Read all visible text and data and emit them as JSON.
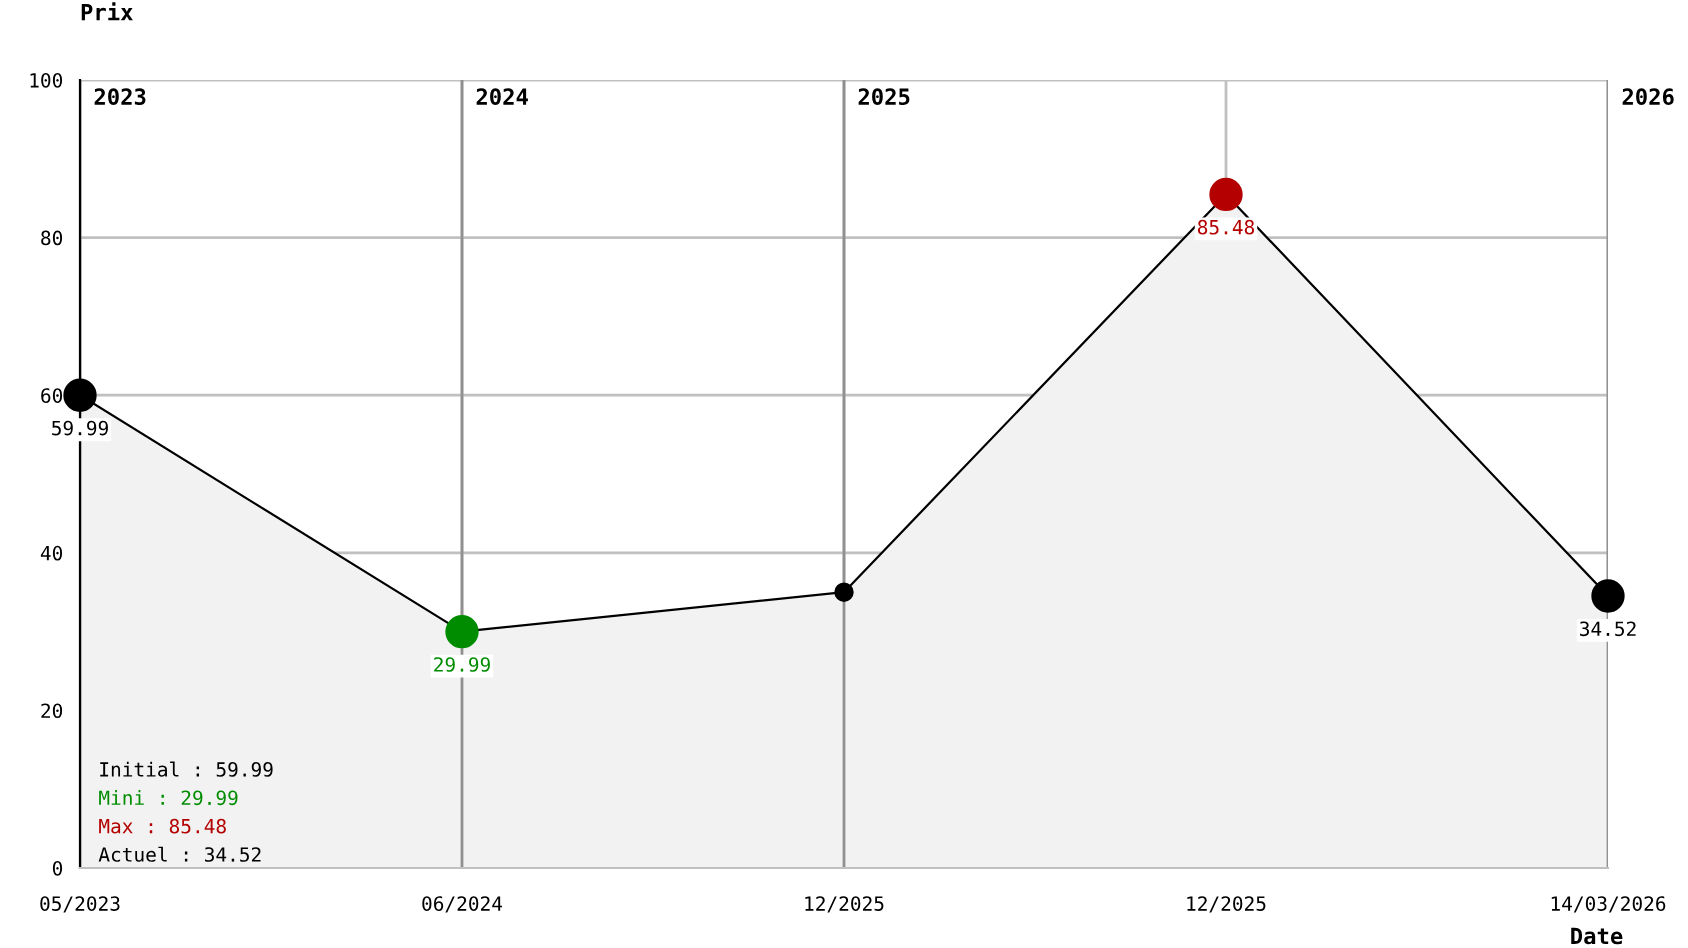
{
  "chart_data": {
    "type": "area",
    "ylabel": "Prix",
    "xlabel": "Date",
    "categories": [
      "05/2023",
      "06/2024",
      "12/2025",
      "12/2025",
      "14/03/2026"
    ],
    "ylim": [
      0,
      100
    ],
    "yticks": [
      0,
      20,
      40,
      60,
      80,
      100
    ],
    "series": [
      {
        "color": "#f2f2f2",
        "colors": [
          "#000000",
          "#008c00",
          "#000000",
          "#b40000",
          "#000000"
        ],
        "values": [
          59.99,
          29.99,
          35,
          85.48,
          34.52
        ],
        "value_labels": [
          "59.99",
          "29.99",
          null,
          "85.48",
          "34.52"
        ]
      }
    ],
    "marker": "circle",
    "line_style": "solid",
    "grid": true,
    "annotations": [
      "2023",
      "2024",
      "2025",
      "2026",
      "Initial : 59.99",
      "Mini : 29.99",
      "Max : 85.48",
      "Actuel : 34.52"
    ]
  }
}
